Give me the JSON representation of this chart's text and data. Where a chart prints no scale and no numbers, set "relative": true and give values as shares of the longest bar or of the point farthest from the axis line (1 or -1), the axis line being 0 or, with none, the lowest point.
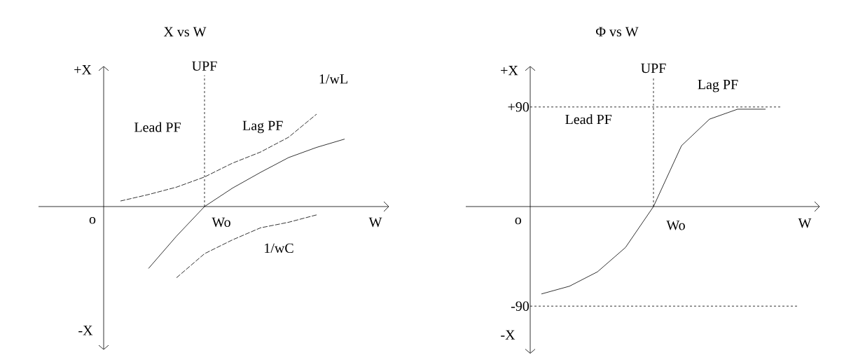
{
  "chart_data": [
    {
      "type": "line",
      "title": "X vs W",
      "xlabel": "W",
      "relative": true,
      "tick_labels": false,
      "marker": "none",
      "categories": [
        null,
        null,
        null,
        null,
        null,
        null,
        null,
        null,
        null
      ],
      "series": [
        {
          "color": "#000000",
          "line_style": "solid",
          "values": [
            null,
            -0.67,
            -0.32,
            0,
            0.2,
            0.37,
            0.53,
            0.64,
            0.73
          ]
        },
        {
          "name": "1/wL",
          "color": "#000000",
          "line_style": "dashed",
          "values": [
            0.06,
            0.13,
            0.21,
            0.32,
            0.47,
            0.59,
            0.75,
            1,
            null
          ]
        },
        {
          "name": "1/wC",
          "color": "#000000",
          "line_style": "dashed",
          "values": [
            null,
            null,
            -0.77,
            -0.51,
            -0.36,
            -0.23,
            -0.17,
            -0.09,
            null
          ]
        }
      ],
      "annotations": [
        "Lead PF",
        "Lag PF",
        "+X",
        "-X",
        "o",
        "Wo",
        "UPF"
      ]
    },
    {
      "type": "line",
      "title": "Φ vs W",
      "xlabel": "W",
      "ylim": [
        -133,
        127
      ],
      "yticks": [
        {
          "value": 90,
          "label": "+90"
        },
        -90
      ],
      "tick_labels": "y",
      "marker": "none",
      "categories": [
        null,
        null,
        null,
        null,
        null,
        null,
        null,
        null,
        null
      ],
      "series": [
        {
          "color": "#000000",
          "line_style": "solid",
          "values": [
            -79,
            -72,
            -59,
            -37,
            0,
            55,
            79,
            88,
            88
          ]
        }
      ],
      "ref_lines": [
        {
          "axis": "y",
          "value": 90,
          "line_style": "dashed"
        },
        {
          "axis": "y",
          "value": -90,
          "line_style": "dashed"
        }
      ],
      "annotations": [
        "Lead PF",
        "Lag PF",
        "+X",
        "-X",
        "o",
        "Wo",
        "UPF"
      ]
    }
  ]
}
